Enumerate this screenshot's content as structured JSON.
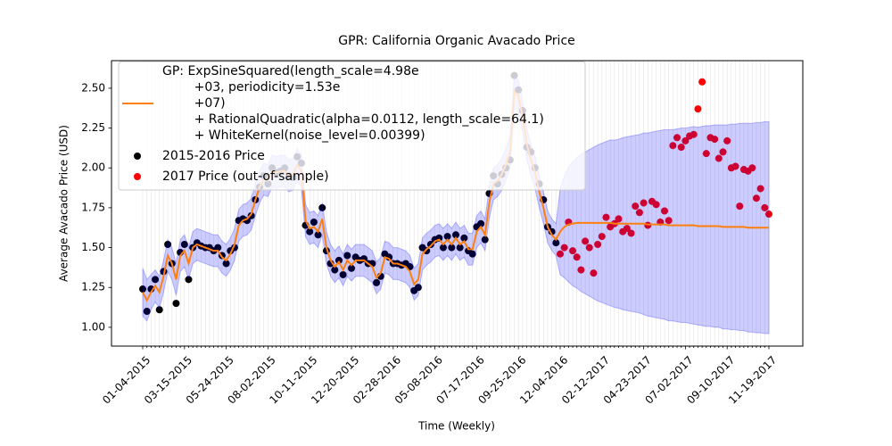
{
  "chart_data": {
    "type": "line",
    "title": "GPR: California Organic Avacado Price",
    "x_label": "Time (Weekly)",
    "y_label": "Average Avacado Price (USD)",
    "categories": [
      "01-04-2015",
      null,
      null,
      null,
      null,
      null,
      null,
      null,
      null,
      null,
      "03-15-2015",
      null,
      null,
      null,
      null,
      null,
      null,
      null,
      null,
      null,
      "05-24-2015",
      null,
      null,
      null,
      null,
      null,
      null,
      null,
      null,
      null,
      "08-02-2015",
      null,
      null,
      null,
      null,
      null,
      null,
      null,
      null,
      null,
      "10-11-2015",
      null,
      null,
      null,
      null,
      null,
      null,
      null,
      null,
      null,
      "12-20-2015",
      null,
      null,
      null,
      null,
      null,
      null,
      null,
      null,
      null,
      "02-28-2016",
      null,
      null,
      null,
      null,
      null,
      null,
      null,
      null,
      null,
      "05-08-2016",
      null,
      null,
      null,
      null,
      null,
      null,
      null,
      null,
      null,
      "07-17-2016",
      null,
      null,
      null,
      null,
      null,
      null,
      null,
      null,
      null,
      "09-25-2016",
      null,
      null,
      null,
      null,
      null,
      null,
      null,
      null,
      null,
      "12-04-2016",
      null,
      null,
      null,
      null,
      null,
      null,
      null,
      null,
      null,
      "02-12-2017",
      null,
      null,
      null,
      null,
      null,
      null,
      null,
      null,
      null,
      "04-23-2017",
      null,
      null,
      null,
      null,
      null,
      null,
      null,
      null,
      null,
      "07-02-2017",
      null,
      null,
      null,
      null,
      null,
      null,
      null,
      null,
      null,
      "09-10-2017",
      null,
      null,
      null,
      null,
      null,
      null,
      null,
      null,
      null,
      "11-19-2017"
    ],
    "ylim": [
      0.882,
      2.673
    ],
    "yticks": [
      {
        "value": 1,
        "label": "1.00"
      },
      {
        "value": 1.25,
        "label": "1.25"
      },
      {
        "value": 1.5,
        "label": "1.50"
      },
      {
        "value": 1.75,
        "label": "1.75"
      },
      {
        "value": 2,
        "label": "2.00"
      },
      {
        "value": 2.25,
        "label": "2.25"
      },
      {
        "value": 2.5,
        "label": "2.50"
      }
    ],
    "grid": true,
    "legend": "upper left",
    "series": [
      {
        "name": "GP: ExpSineSquared(length_scale=4.98e\n        +03, periodicity=1.53e\n        +07)\n        + RationalQuadratic(alpha=0.0112, length_scale=64.1)\n        + WhiteKernel(noise_level=0.00399)",
        "type": "line",
        "color": "#ff7f0e",
        "values": [
          1.22,
          1.17,
          1.22,
          1.26,
          1.22,
          1.32,
          1.45,
          1.4,
          1.3,
          1.45,
          1.48,
          1.4,
          1.5,
          1.52,
          1.51,
          1.5,
          1.49,
          1.48,
          1.48,
          1.44,
          1.42,
          1.46,
          1.52,
          1.64,
          1.67,
          1.68,
          1.71,
          1.8,
          1.88,
          1.93,
          1.92,
          1.98,
          1.97,
          1.98,
          1.98,
          1.95,
          1.96,
          2.02,
          1.98,
          1.67,
          1.62,
          1.63,
          1.6,
          1.68,
          1.5,
          1.42,
          1.38,
          1.41,
          1.36,
          1.42,
          1.39,
          1.42,
          1.42,
          1.42,
          1.4,
          1.38,
          1.31,
          1.34,
          1.44,
          1.43,
          1.4,
          1.4,
          1.39,
          1.38,
          1.35,
          1.27,
          1.3,
          1.46,
          1.49,
          1.51,
          1.54,
          1.55,
          1.52,
          1.55,
          1.52,
          1.56,
          1.52,
          1.54,
          1.49,
          1.49,
          1.6,
          1.63,
          1.58,
          1.78,
          1.9,
          1.92,
          1.96,
          2.02,
          2.1,
          2.48,
          2.45,
          2.32,
          2.15,
          2.05,
          1.97,
          1.85,
          1.75,
          1.63,
          1.58,
          1.55,
          1.6,
          1.63,
          1.645,
          1.65,
          1.655,
          1.655,
          1.655,
          1.655,
          1.655,
          1.655,
          1.655,
          1.655,
          1.655,
          1.65,
          1.65,
          1.65,
          1.65,
          1.65,
          1.65,
          1.65,
          1.65,
          1.645,
          1.645,
          1.645,
          1.645,
          1.645,
          1.64,
          1.64,
          1.64,
          1.64,
          1.64,
          1.64,
          1.64,
          1.635,
          1.635,
          1.635,
          1.635,
          1.635,
          1.635,
          1.63,
          1.63,
          1.63,
          1.63,
          1.63,
          1.63,
          1.625,
          1.625,
          1.625,
          1.625,
          1.625,
          1.625
        ]
      },
      {
        "name": "2015-2016 Price",
        "type": "scatter",
        "color": "#000000",
        "values": [
          1.24,
          1.1,
          1.24,
          1.3,
          1.11,
          1.35,
          1.52,
          1.4,
          1.15,
          1.47,
          1.52,
          1.3,
          1.5,
          1.53,
          1.51,
          1.5,
          1.5,
          1.48,
          1.5,
          1.45,
          1.4,
          1.48,
          1.5,
          1.67,
          1.68,
          1.67,
          1.7,
          1.8,
          1.88,
          1.95,
          1.9,
          2.0,
          1.97,
          1.98,
          2.0,
          1.95,
          1.94,
          2.07,
          2.03,
          1.64,
          1.6,
          1.66,
          1.58,
          1.75,
          1.48,
          1.4,
          1.36,
          1.42,
          1.33,
          1.45,
          1.37,
          1.44,
          1.42,
          1.43,
          1.4,
          1.4,
          1.28,
          1.32,
          1.46,
          1.44,
          1.4,
          1.4,
          1.39,
          1.4,
          1.38,
          1.23,
          1.25,
          1.5,
          1.48,
          1.52,
          1.55,
          1.56,
          1.5,
          1.57,
          1.5,
          1.58,
          1.5,
          1.56,
          1.48,
          1.46,
          1.63,
          1.65,
          1.55,
          1.84,
          1.95,
          1.9,
          1.96,
          2.0,
          2.05,
          2.58,
          2.49,
          2.36,
          2.13,
          2.1,
          2.0,
          1.9,
          1.8,
          1.63,
          1.6,
          1.53,
          null,
          null,
          null,
          null,
          null,
          null,
          null,
          null,
          null,
          null,
          null,
          null,
          null,
          null,
          null,
          null,
          null,
          null,
          null,
          null,
          null,
          null,
          null,
          null,
          null,
          null,
          null,
          null,
          null,
          null,
          null,
          null,
          null,
          null,
          null,
          null,
          null,
          null,
          null,
          null,
          null,
          null,
          null,
          null,
          null,
          null,
          null,
          null,
          null,
          null,
          null
        ]
      },
      {
        "name": "2017 Price (out-of-sample)",
        "type": "scatter",
        "color": "#ff0000",
        "values": [
          null,
          null,
          null,
          null,
          null,
          null,
          null,
          null,
          null,
          null,
          null,
          null,
          null,
          null,
          null,
          null,
          null,
          null,
          null,
          null,
          null,
          null,
          null,
          null,
          null,
          null,
          null,
          null,
          null,
          null,
          null,
          null,
          null,
          null,
          null,
          null,
          null,
          null,
          null,
          null,
          null,
          null,
          null,
          null,
          null,
          null,
          null,
          null,
          null,
          null,
          null,
          null,
          null,
          null,
          null,
          null,
          null,
          null,
          null,
          null,
          null,
          null,
          null,
          null,
          null,
          null,
          null,
          null,
          null,
          null,
          null,
          null,
          null,
          null,
          null,
          null,
          null,
          null,
          null,
          null,
          null,
          null,
          null,
          null,
          null,
          null,
          null,
          null,
          null,
          null,
          null,
          null,
          null,
          null,
          null,
          null,
          null,
          null,
          null,
          null,
          1.46,
          1.5,
          1.66,
          1.48,
          1.44,
          1.36,
          1.54,
          1.5,
          1.34,
          1.52,
          1.57,
          1.69,
          1.63,
          1.65,
          1.68,
          1.6,
          1.62,
          1.59,
          1.76,
          1.72,
          1.78,
          1.64,
          1.79,
          1.77,
          1.66,
          1.73,
          1.67,
          2.14,
          2.19,
          2.13,
          2.17,
          2.2,
          2.21,
          2.37,
          2.54,
          2.09,
          2.19,
          2.18,
          2.06,
          2.1,
          2.17,
          2.0,
          2.01,
          1.76,
          1.99,
          1.98,
          2.0,
          1.81,
          1.87,
          1.75,
          1.71
        ]
      }
    ],
    "band": {
      "color": "#0000ff",
      "lower": [
        1.07,
        1.04,
        1.11,
        1.16,
        1.12,
        1.22,
        1.35,
        1.3,
        1.2,
        1.35,
        1.38,
        1.3,
        1.4,
        1.42,
        1.41,
        1.4,
        1.39,
        1.38,
        1.38,
        1.34,
        1.32,
        1.36,
        1.42,
        1.54,
        1.57,
        1.58,
        1.61,
        1.7,
        1.78,
        1.83,
        1.82,
        1.88,
        1.87,
        1.88,
        1.88,
        1.85,
        1.86,
        1.92,
        1.88,
        1.57,
        1.52,
        1.53,
        1.5,
        1.58,
        1.4,
        1.32,
        1.28,
        1.31,
        1.26,
        1.32,
        1.29,
        1.32,
        1.32,
        1.32,
        1.3,
        1.28,
        1.21,
        1.24,
        1.34,
        1.33,
        1.3,
        1.3,
        1.29,
        1.28,
        1.25,
        1.17,
        1.2,
        1.36,
        1.39,
        1.41,
        1.44,
        1.45,
        1.42,
        1.45,
        1.42,
        1.46,
        1.42,
        1.44,
        1.39,
        1.39,
        1.5,
        1.53,
        1.48,
        1.68,
        1.8,
        1.82,
        1.86,
        1.92,
        2.0,
        2.38,
        2.35,
        2.22,
        2.05,
        1.95,
        1.87,
        1.75,
        1.65,
        1.53,
        1.48,
        1.45,
        1.33,
        1.31,
        1.285,
        1.26,
        1.245,
        1.225,
        1.21,
        1.195,
        1.18,
        1.165,
        1.155,
        1.145,
        1.135,
        1.125,
        1.12,
        1.11,
        1.105,
        1.1,
        1.095,
        1.09,
        1.08,
        1.07,
        1.065,
        1.06,
        1.055,
        1.05,
        1.04,
        1.04,
        1.035,
        1.03,
        1.03,
        1.025,
        1.02,
        1.015,
        1.01,
        1.005,
        1.005,
        1.0,
        1.0,
        0.99,
        0.99,
        0.985,
        0.985,
        0.98,
        0.98,
        0.97,
        0.97,
        0.965,
        0.965,
        0.96,
        0.96
      ],
      "upper": [
        1.37,
        1.3,
        1.33,
        1.36,
        1.32,
        1.42,
        1.55,
        1.5,
        1.4,
        1.55,
        1.58,
        1.5,
        1.6,
        1.62,
        1.61,
        1.6,
        1.59,
        1.58,
        1.58,
        1.54,
        1.52,
        1.56,
        1.62,
        1.74,
        1.77,
        1.78,
        1.81,
        1.9,
        1.98,
        2.03,
        2.02,
        2.08,
        2.07,
        2.08,
        2.08,
        2.05,
        2.06,
        2.12,
        2.08,
        1.77,
        1.72,
        1.73,
        1.7,
        1.78,
        1.6,
        1.52,
        1.48,
        1.51,
        1.46,
        1.52,
        1.49,
        1.52,
        1.52,
        1.52,
        1.5,
        1.48,
        1.41,
        1.44,
        1.54,
        1.53,
        1.5,
        1.5,
        1.49,
        1.48,
        1.45,
        1.37,
        1.4,
        1.56,
        1.59,
        1.61,
        1.64,
        1.65,
        1.62,
        1.65,
        1.62,
        1.66,
        1.62,
        1.64,
        1.59,
        1.59,
        1.7,
        1.73,
        1.68,
        1.88,
        2.0,
        2.02,
        2.06,
        2.12,
        2.2,
        2.58,
        2.55,
        2.42,
        2.25,
        2.15,
        2.07,
        1.95,
        1.85,
        1.73,
        1.68,
        1.65,
        1.87,
        1.95,
        2.005,
        2.04,
        2.065,
        2.085,
        2.1,
        2.115,
        2.13,
        2.145,
        2.155,
        2.165,
        2.175,
        2.175,
        2.18,
        2.19,
        2.195,
        2.2,
        2.205,
        2.21,
        2.22,
        2.22,
        2.225,
        2.23,
        2.235,
        2.24,
        2.24,
        2.24,
        2.245,
        2.25,
        2.25,
        2.255,
        2.26,
        2.255,
        2.26,
        2.265,
        2.265,
        2.27,
        2.27,
        2.27,
        2.27,
        2.275,
        2.275,
        2.28,
        2.28,
        2.28,
        2.28,
        2.285,
        2.285,
        2.29,
        2.29
      ]
    }
  }
}
